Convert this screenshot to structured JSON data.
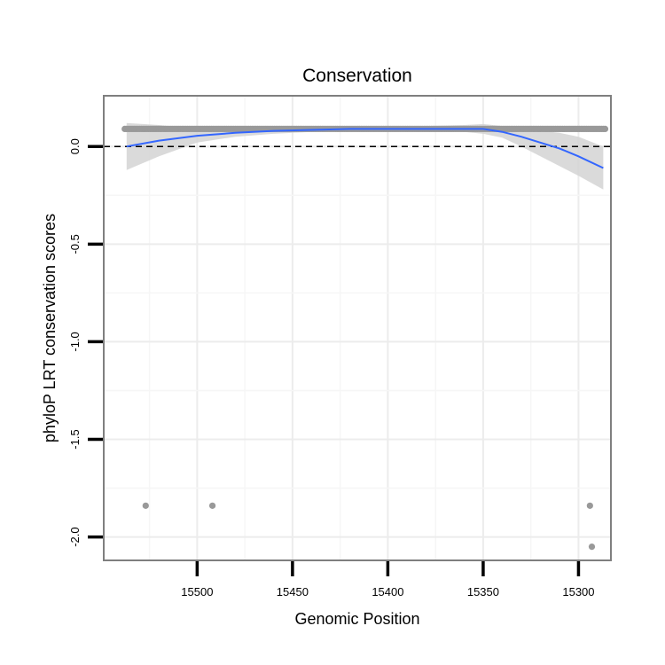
{
  "chart_data": {
    "type": "scatter",
    "title": "Conservation",
    "xlabel": "Genomic Position",
    "ylabel": "phyloP LRT conservation scores",
    "x_reversed": true,
    "xlim": [
      15549,
      15283
    ],
    "ylim": [
      -2.12,
      0.26
    ],
    "x_ticks": [
      15500,
      15450,
      15400,
      15350,
      15300
    ],
    "x_tick_labels": [
      "15500",
      "15450",
      "15400",
      "15350",
      "15300"
    ],
    "y_ticks": [
      0.0,
      -0.5,
      -1.0,
      -1.5,
      -2.0
    ],
    "y_tick_labels": [
      "0.0",
      "-0.5",
      "-1.0",
      "-1.5",
      "-2.0"
    ],
    "grid": true,
    "reference_line": {
      "y": 0.0,
      "style": "dashed",
      "color": "#000000"
    },
    "points_series": {
      "color": "#999999",
      "dense_band": {
        "x_from": 15538,
        "x_to": 15286,
        "y": 0.09
      },
      "outliers": [
        {
          "x": 15527,
          "y": -1.84
        },
        {
          "x": 15492,
          "y": -1.84
        },
        {
          "x": 15294,
          "y": -1.84
        },
        {
          "x": 15293,
          "y": -2.05
        }
      ]
    },
    "smooth": {
      "color": "#3366ff",
      "ribbon_color": "#d3d3d3",
      "x": [
        15537,
        15520,
        15500,
        15480,
        15460,
        15440,
        15420,
        15400,
        15380,
        15360,
        15350,
        15340,
        15330,
        15320,
        15310,
        15300,
        15287
      ],
      "y": [
        0.0,
        0.03,
        0.055,
        0.07,
        0.08,
        0.085,
        0.09,
        0.09,
        0.09,
        0.09,
        0.09,
        0.075,
        0.05,
        0.02,
        -0.01,
        -0.05,
        -0.11
      ],
      "lower": [
        -0.12,
        -0.05,
        0.02,
        0.05,
        0.065,
        0.075,
        0.08,
        0.08,
        0.08,
        0.075,
        0.065,
        0.045,
        0.0,
        -0.05,
        -0.1,
        -0.15,
        -0.22
      ],
      "upper": [
        0.12,
        0.11,
        0.09,
        0.09,
        0.095,
        0.1,
        0.1,
        0.1,
        0.105,
        0.11,
        0.115,
        0.105,
        0.09,
        0.08,
        0.07,
        0.05,
        0.0
      ]
    }
  }
}
